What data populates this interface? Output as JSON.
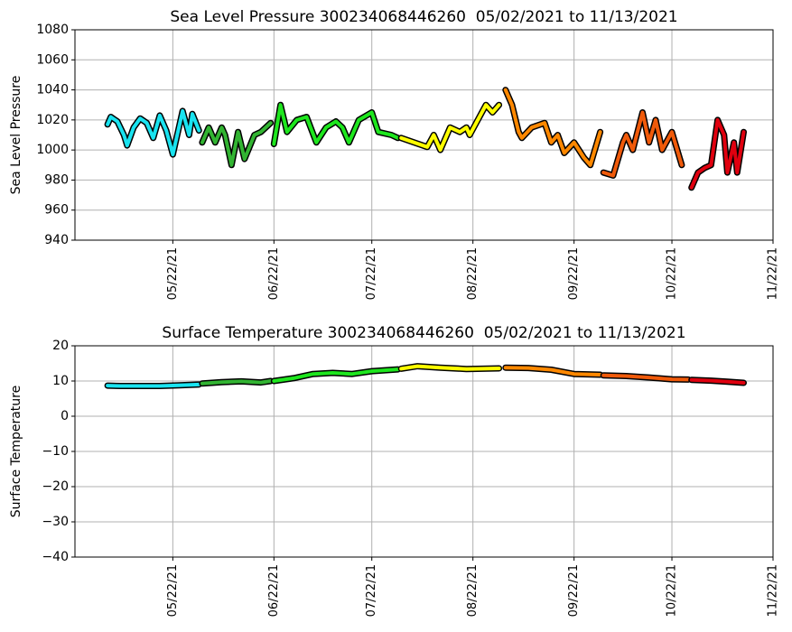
{
  "chart_data": [
    {
      "type": "line",
      "title": "Sea Level Pressure 300234068446260  05/02/2021 to 11/13/2021",
      "ylabel": "Sea Level Pressure",
      "xlim": [
        "2021-04-22",
        "2021-11-22"
      ],
      "xticks": [
        {
          "value": "2021-05-22",
          "label": "05/22/21"
        },
        {
          "value": "2021-06-22",
          "label": "06/22/21"
        },
        {
          "value": "2021-07-22",
          "label": "07/22/21"
        },
        {
          "value": "2021-08-22",
          "label": "08/22/21"
        },
        {
          "value": "2021-09-22",
          "label": "09/22/21"
        },
        {
          "value": "2021-10-22",
          "label": "10/22/21"
        },
        {
          "value": "2021-11-22",
          "label": "11/22/21"
        }
      ],
      "ylim": [
        940,
        1080
      ],
      "yticks": [
        940,
        960,
        980,
        1000,
        1020,
        1040,
        1060,
        1080
      ],
      "grid": true,
      "series": [
        {
          "color": "#19e3f0",
          "x": [
            "2021-05-02",
            "2021-05-03",
            "2021-05-05",
            "2021-05-07",
            "2021-05-08",
            "2021-05-10",
            "2021-05-12",
            "2021-05-14",
            "2021-05-16",
            "2021-05-18",
            "2021-05-20",
            "2021-05-22",
            "2021-05-25",
            "2021-05-27",
            "2021-05-28",
            "2021-05-30"
          ],
          "values": [
            1017,
            1022,
            1019,
            1010,
            1003,
            1015,
            1021,
            1018,
            1008,
            1023,
            1013,
            997,
            1026,
            1010,
            1024,
            1013
          ]
        },
        {
          "color": "#32b432",
          "x": [
            "2021-05-31",
            "2021-06-02",
            "2021-06-04",
            "2021-06-06",
            "2021-06-07",
            "2021-06-09",
            "2021-06-11",
            "2021-06-13",
            "2021-06-16",
            "2021-06-18",
            "2021-06-21"
          ],
          "values": [
            1005,
            1015,
            1005,
            1015,
            1010,
            990,
            1012,
            994,
            1010,
            1012,
            1018
          ]
        },
        {
          "color": "#1ee61e",
          "x": [
            "2021-06-22",
            "2021-06-24",
            "2021-06-26",
            "2021-06-29",
            "2021-07-02",
            "2021-07-05",
            "2021-07-08",
            "2021-07-11",
            "2021-07-13",
            "2021-07-15",
            "2021-07-18",
            "2021-07-22",
            "2021-07-24",
            "2021-07-28",
            "2021-07-30"
          ],
          "values": [
            1004,
            1030,
            1012,
            1020,
            1022,
            1005,
            1015,
            1019,
            1015,
            1005,
            1020,
            1025,
            1012,
            1010,
            1008
          ]
        },
        {
          "color": "#ffff00",
          "x": [
            "2021-07-31",
            "2021-08-08",
            "2021-08-10",
            "2021-08-12",
            "2021-08-15",
            "2021-08-18",
            "2021-08-20",
            "2021-08-21",
            "2021-08-24",
            "2021-08-26",
            "2021-08-28",
            "2021-08-30"
          ],
          "values": [
            1008,
            1002,
            1010,
            1000,
            1015,
            1012,
            1015,
            1010,
            1022,
            1030,
            1025,
            1030
          ]
        },
        {
          "color": "#ff8800",
          "x": [
            "2021-09-01",
            "2021-09-03",
            "2021-09-05",
            "2021-09-06",
            "2021-09-09",
            "2021-09-13",
            "2021-09-15",
            "2021-09-17",
            "2021-09-19",
            "2021-09-22",
            "2021-09-25",
            "2021-09-27",
            "2021-09-30"
          ],
          "values": [
            1040,
            1030,
            1012,
            1008,
            1015,
            1018,
            1005,
            1010,
            998,
            1005,
            995,
            990,
            1012
          ]
        },
        {
          "color": "#f05a0a",
          "x": [
            "2021-10-01",
            "2021-10-04",
            "2021-10-07",
            "2021-10-08",
            "2021-10-10",
            "2021-10-13",
            "2021-10-15",
            "2021-10-17",
            "2021-10-19",
            "2021-10-22",
            "2021-10-25"
          ],
          "values": [
            985,
            983,
            1005,
            1010,
            1000,
            1025,
            1005,
            1020,
            1000,
            1012,
            990
          ]
        },
        {
          "color": "#e0000f",
          "x": [
            "2021-10-28",
            "2021-10-30",
            "2021-11-01",
            "2021-11-03",
            "2021-11-05",
            "2021-11-07",
            "2021-11-08",
            "2021-11-10",
            "2021-11-11",
            "2021-11-13"
          ],
          "values": [
            975,
            985,
            988,
            990,
            1020,
            1010,
            985,
            1005,
            985,
            1012
          ]
        }
      ]
    },
    {
      "type": "line",
      "title": "Surface Temperature 300234068446260  05/02/2021 to 11/13/2021",
      "ylabel": "Surface Temperature",
      "xlim": [
        "2021-04-22",
        "2021-11-22"
      ],
      "xticks": [
        {
          "value": "2021-05-22",
          "label": "05/22/21"
        },
        {
          "value": "2021-06-22",
          "label": "06/22/21"
        },
        {
          "value": "2021-07-22",
          "label": "07/22/21"
        },
        {
          "value": "2021-08-22",
          "label": "08/22/21"
        },
        {
          "value": "2021-09-22",
          "label": "09/22/21"
        },
        {
          "value": "2021-10-22",
          "label": "10/22/21"
        },
        {
          "value": "2021-11-22",
          "label": "11/22/21"
        }
      ],
      "ylim": [
        -40,
        20
      ],
      "yticks": [
        {
          "value": -40,
          "label": "−40"
        },
        {
          "value": -30,
          "label": "−30"
        },
        {
          "value": -20,
          "label": "−20"
        },
        {
          "value": -10,
          "label": "−10"
        },
        0,
        10,
        20
      ],
      "grid": true,
      "series": [
        {
          "color": "#19e3f0",
          "x": [
            "2021-05-02",
            "2021-05-06",
            "2021-05-12",
            "2021-05-18",
            "2021-05-24",
            "2021-05-30"
          ],
          "values": [
            8.7,
            8.6,
            8.6,
            8.6,
            8.8,
            9
          ]
        },
        {
          "color": "#32b432",
          "x": [
            "2021-05-31",
            "2021-06-06",
            "2021-06-12",
            "2021-06-18",
            "2021-06-21"
          ],
          "values": [
            9.3,
            9.7,
            9.9,
            9.6,
            10
          ]
        },
        {
          "color": "#1ee61e",
          "x": [
            "2021-06-22",
            "2021-06-28",
            "2021-07-04",
            "2021-07-10",
            "2021-07-16",
            "2021-07-22",
            "2021-07-30"
          ],
          "values": [
            10,
            10.8,
            12,
            12.3,
            12,
            12.8,
            13.3
          ]
        },
        {
          "color": "#ffff00",
          "x": [
            "2021-07-31",
            "2021-08-05",
            "2021-08-12",
            "2021-08-20",
            "2021-08-30"
          ],
          "values": [
            13.5,
            14.2,
            13.8,
            13.4,
            13.6
          ]
        },
        {
          "color": "#ff8800",
          "x": [
            "2021-09-01",
            "2021-09-08",
            "2021-09-15",
            "2021-09-22",
            "2021-09-30"
          ],
          "values": [
            13.8,
            13.7,
            13.2,
            12,
            11.8
          ]
        },
        {
          "color": "#f05a0a",
          "x": [
            "2021-10-01",
            "2021-10-08",
            "2021-10-15",
            "2021-10-22",
            "2021-10-27"
          ],
          "values": [
            11.6,
            11.4,
            11,
            10.5,
            10.4
          ]
        },
        {
          "color": "#e0000f",
          "x": [
            "2021-10-28",
            "2021-11-03",
            "2021-11-08",
            "2021-11-13"
          ],
          "values": [
            10.3,
            10.1,
            9.8,
            9.5
          ]
        }
      ]
    }
  ]
}
